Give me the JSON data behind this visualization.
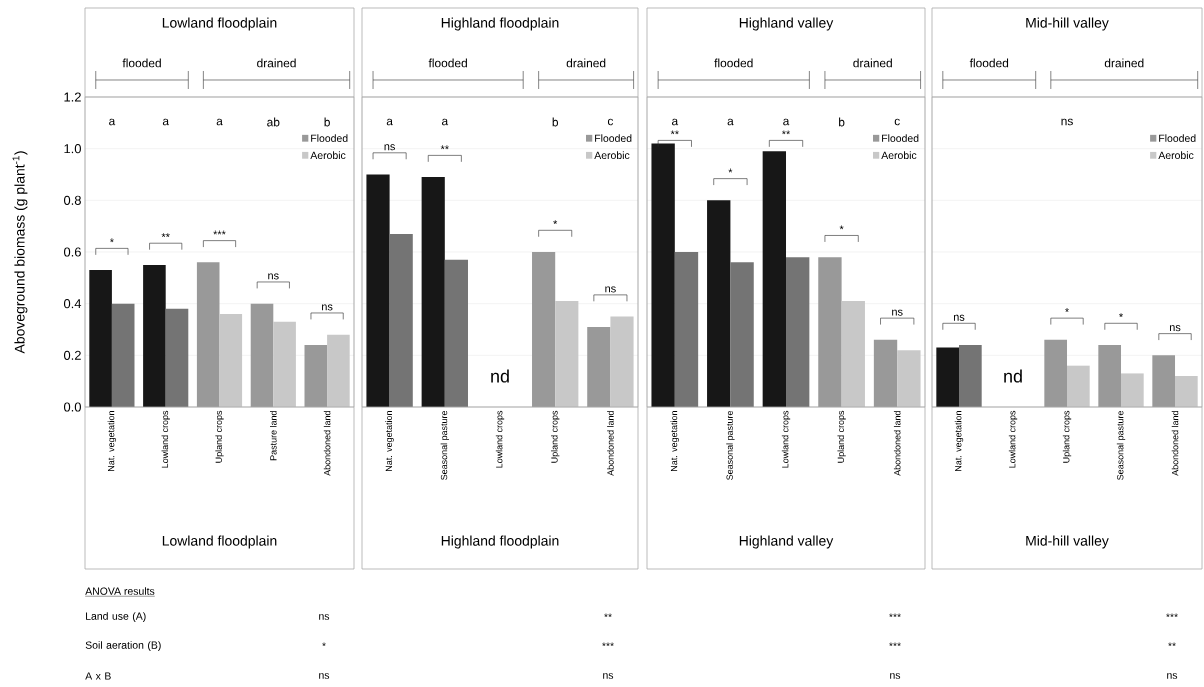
{
  "chart_data": [
    {
      "type": "bar",
      "title": "Lowland floodplain",
      "xlabel": "Lowland floodplain",
      "ylabel": "Aboveground biomass (g plant$^{-1}$)",
      "categories": [
        "Nat. vegetation",
        "Lowland crops",
        "Upland crops",
        "Pasture land",
        "Abondoned land"
      ],
      "series": [
        {
          "name": "Flooded",
          "color": "#999999",
          "values": [
            0.53,
            0.55,
            0.56,
            0.4,
            0.24
          ],
          "colors": [
            "#171717",
            "#171717",
            "#999999",
            "#999999",
            "#999999"
          ]
        },
        {
          "name": "Aerobic",
          "color": "#c8c8c8",
          "values": [
            0.4,
            0.38,
            0.36,
            0.33,
            0.28
          ],
          "colors": [
            "#747474",
            "#747474",
            "#c8c8c8",
            "#c8c8c8",
            "#c8c8c8"
          ]
        }
      ],
      "ylim": [
        0,
        1.2
      ],
      "yticks": [
        {
          "value": 0,
          "label": "0.0"
        },
        {
          "value": 0.2,
          "label": "0.2"
        },
        {
          "value": 0.4,
          "label": "0.4"
        },
        {
          "value": 0.6,
          "label": "0.6"
        },
        {
          "value": 0.8,
          "label": "0.8"
        },
        {
          "value": 1.0,
          "label": "1.0"
        },
        {
          "value": 1.2,
          "label": "1.2"
        }
      ],
      "grid": "y",
      "legend": "top right",
      "annotations": [
        "flooded",
        "drained",
        "a",
        "a",
        "a",
        "ab",
        "b",
        "*",
        "**",
        "***",
        "ns",
        "ns"
      ]
    },
    {
      "type": "bar",
      "title": "Highland floodplain",
      "xlabel": "Highland floodplain",
      "categories": [
        "Nat. vegetation",
        "Seasonal pasture",
        "Lowland crops",
        "Upland crops",
        "Abondoned land"
      ],
      "series": [
        {
          "name": "Flooded",
          "color": "#999999",
          "values": [
            0.9,
            0.89,
            null,
            0.6,
            0.31
          ],
          "colors": [
            "#171717",
            "#171717",
            "#171717",
            "#999999",
            "#999999"
          ]
        },
        {
          "name": "Aerobic",
          "color": "#c8c8c8",
          "values": [
            0.67,
            0.57,
            null,
            0.41,
            0.35
          ],
          "colors": [
            "#747474",
            "#747474",
            "#747474",
            "#c8c8c8",
            "#c8c8c8"
          ]
        }
      ],
      "ylim": [
        0,
        1.2
      ],
      "yticks": [
        0,
        0.2,
        0.4,
        0.6,
        0.8,
        1.0,
        1.2
      ],
      "tick_labels": "x",
      "grid": "y",
      "legend": "top right",
      "annotations": [
        "flooded",
        "drained",
        "a",
        "a",
        "b",
        "c",
        "ns",
        "**",
        "*",
        "ns",
        "nd"
      ]
    },
    {
      "type": "bar",
      "title": "Highland valley",
      "xlabel": "Highland valley",
      "categories": [
        "Nat. vegetation",
        "Seasonal pasture",
        "Lowland crops",
        "Upland crops",
        "Abondoned land"
      ],
      "series": [
        {
          "name": "Flooded",
          "color": "#999999",
          "values": [
            1.02,
            0.8,
            0.99,
            0.58,
            0.26
          ],
          "colors": [
            "#171717",
            "#171717",
            "#171717",
            "#999999",
            "#999999"
          ]
        },
        {
          "name": "Aerobic",
          "color": "#c8c8c8",
          "values": [
            0.6,
            0.56,
            0.58,
            0.41,
            0.22
          ],
          "colors": [
            "#747474",
            "#747474",
            "#747474",
            "#c8c8c8",
            "#c8c8c8"
          ]
        }
      ],
      "ylim": [
        0,
        1.2
      ],
      "yticks": [
        0,
        0.2,
        0.4,
        0.6,
        0.8,
        1.0,
        1.2
      ],
      "tick_labels": "x",
      "grid": "y",
      "legend": "top right",
      "annotations": [
        "flooded",
        "drained",
        "a",
        "a",
        "a",
        "b",
        "c",
        "**",
        "*",
        "**",
        "*",
        "ns"
      ]
    },
    {
      "type": "bar",
      "title": "Mid-hill valley",
      "xlabel": "Mid-hill valley",
      "categories": [
        "Nat. vegetation",
        "Lowland crops",
        "Upland crops",
        "Seasonal pasture",
        "Abondoned land"
      ],
      "series": [
        {
          "name": "Flooded",
          "color": "#999999",
          "values": [
            0.23,
            null,
            0.26,
            0.24,
            0.2
          ],
          "colors": [
            "#171717",
            "#171717",
            "#999999",
            "#999999",
            "#999999"
          ]
        },
        {
          "name": "Aerobic",
          "color": "#c8c8c8",
          "values": [
            0.24,
            null,
            0.16,
            0.13,
            0.12
          ],
          "colors": [
            "#747474",
            "#747474",
            "#c8c8c8",
            "#c8c8c8",
            "#c8c8c8"
          ]
        }
      ],
      "ylim": [
        0,
        1.2
      ],
      "yticks": [
        0,
        0.2,
        0.4,
        0.6,
        0.8,
        1.0,
        1.2
      ],
      "tick_labels": "x",
      "grid": "y",
      "legend": "top right",
      "annotations": [
        "flooded",
        "drained",
        "ns",
        "ns",
        "*",
        "*",
        "ns",
        "nd"
      ]
    },
    {
      "type": "other",
      "annotations": [
        "ANOVA results",
        "Land use (A)",
        "Soil aeration (B)",
        "A x B",
        "ns",
        "*",
        "ns",
        "**",
        "***",
        "ns",
        "***",
        "***",
        "ns",
        "***",
        "**",
        "ns"
      ]
    }
  ]
}
